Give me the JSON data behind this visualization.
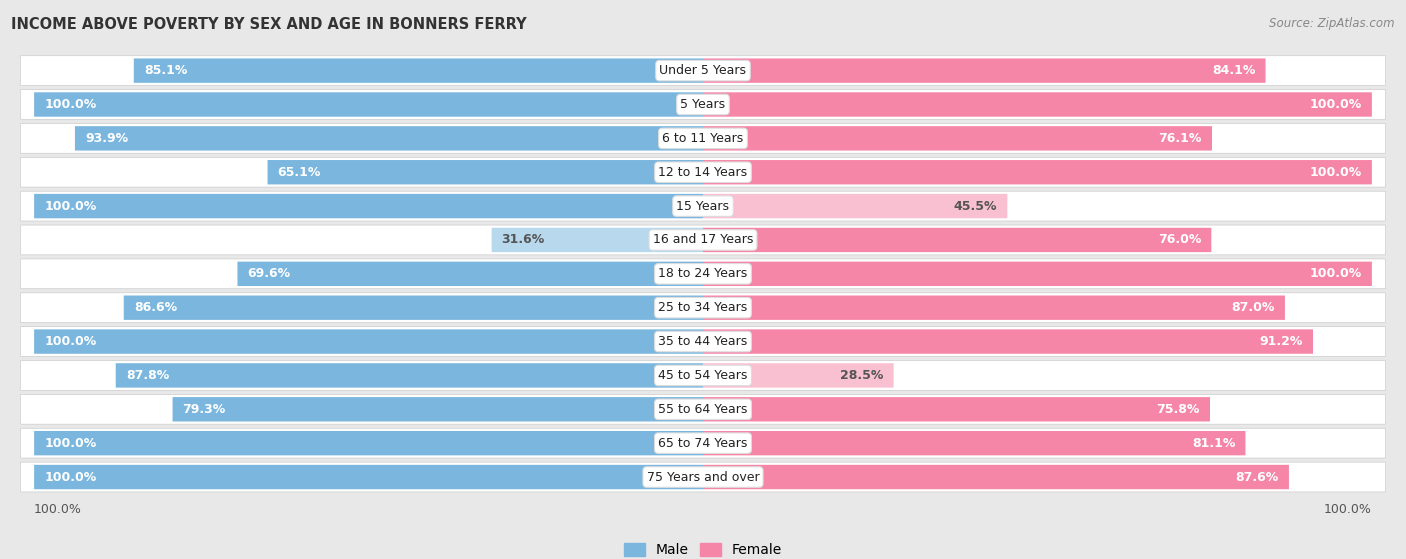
{
  "title": "INCOME ABOVE POVERTY BY SEX AND AGE IN BONNERS FERRY",
  "source": "Source: ZipAtlas.com",
  "categories": [
    "Under 5 Years",
    "5 Years",
    "6 to 11 Years",
    "12 to 14 Years",
    "15 Years",
    "16 and 17 Years",
    "18 to 24 Years",
    "25 to 34 Years",
    "35 to 44 Years",
    "45 to 54 Years",
    "55 to 64 Years",
    "65 to 74 Years",
    "75 Years and over"
  ],
  "male_values": [
    85.1,
    100.0,
    93.9,
    65.1,
    100.0,
    31.6,
    69.6,
    86.6,
    100.0,
    87.8,
    79.3,
    100.0,
    100.0
  ],
  "female_values": [
    84.1,
    100.0,
    76.1,
    100.0,
    45.5,
    76.0,
    100.0,
    87.0,
    91.2,
    28.5,
    75.8,
    81.1,
    87.6
  ],
  "male_color": "#7ab6de",
  "female_color": "#f586a8",
  "male_color_light": "#b8d8ee",
  "female_color_light": "#f9c0d2",
  "male_label": "Male",
  "female_label": "Female",
  "background_color": "#e8e8e8",
  "row_color": "#f0f0f0",
  "max_val": 100.0,
  "label_fontsize": 9.0,
  "title_fontsize": 10.5,
  "source_fontsize": 8.5,
  "cat_fontsize": 9.0,
  "bottom_label": "100.0%"
}
